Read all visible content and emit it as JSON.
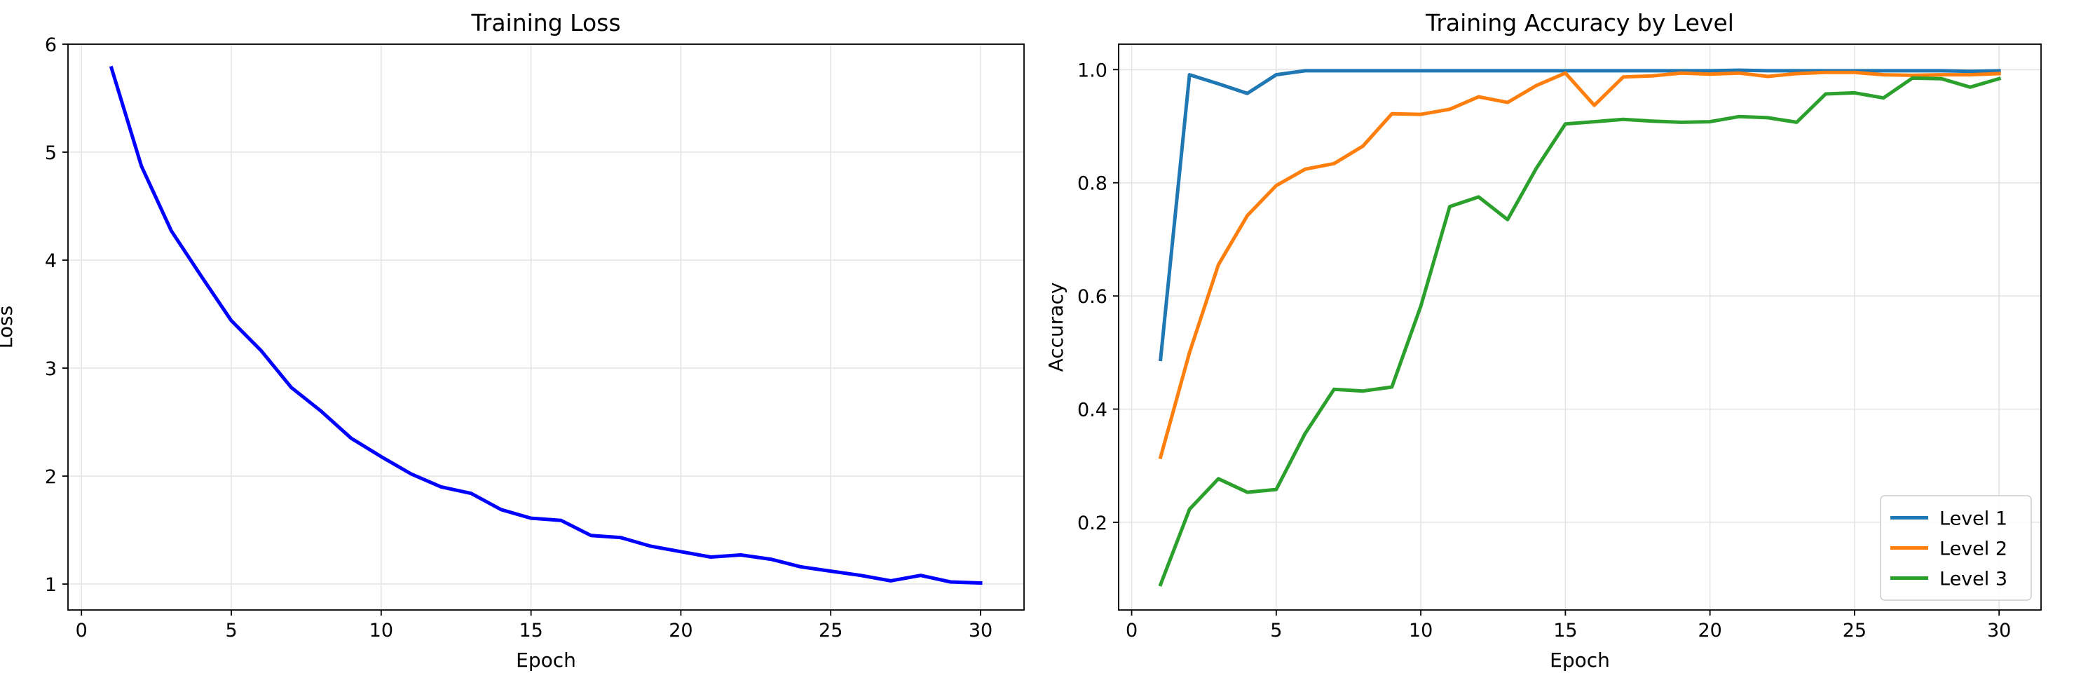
{
  "chart_data": [
    {
      "type": "line",
      "title": "Training Loss",
      "xlabel": "Epoch",
      "ylabel": "Loss",
      "xlim": [
        -0.45,
        31.45
      ],
      "ylim": [
        0.76,
        6.0
      ],
      "xticks": [
        0,
        5,
        10,
        15,
        20,
        25,
        30
      ],
      "yticks": [
        1,
        2,
        3,
        4,
        5,
        6
      ],
      "grid": true,
      "legend": null,
      "x": [
        1,
        2,
        3,
        4,
        5,
        6,
        7,
        8,
        9,
        10,
        11,
        12,
        13,
        14,
        15,
        16,
        17,
        18,
        19,
        20,
        21,
        22,
        23,
        24,
        25,
        26,
        27,
        28,
        29,
        30
      ],
      "series": [
        {
          "color": "#0000ff",
          "values": [
            5.78,
            4.87,
            4.27,
            3.85,
            3.44,
            3.16,
            2.82,
            2.6,
            2.35,
            2.18,
            2.02,
            1.9,
            1.84,
            1.69,
            1.61,
            1.59,
            1.45,
            1.43,
            1.35,
            1.3,
            1.25,
            1.27,
            1.23,
            1.16,
            1.12,
            1.08,
            1.03,
            1.08,
            1.02,
            1.01
          ]
        }
      ]
    },
    {
      "type": "line",
      "title": "Training Accuracy by Level",
      "xlabel": "Epoch",
      "ylabel": "Accuracy",
      "xlim": [
        -0.45,
        31.45
      ],
      "ylim": [
        0.045,
        1.045
      ],
      "xticks": [
        0,
        5,
        10,
        15,
        20,
        25,
        30
      ],
      "yticks": [
        0.2,
        0.4,
        0.6,
        0.8,
        1.0
      ],
      "ytick_labels": [
        "0.2",
        "0.4",
        "0.6",
        "0.8",
        "1.0"
      ],
      "grid": true,
      "legend": "lower-right",
      "x": [
        1,
        2,
        3,
        4,
        5,
        6,
        7,
        8,
        9,
        10,
        11,
        12,
        13,
        14,
        15,
        16,
        17,
        18,
        19,
        20,
        21,
        22,
        23,
        24,
        25,
        26,
        27,
        28,
        29,
        30
      ],
      "series": [
        {
          "name": "Level 1",
          "color": "#1f77b4",
          "values": [
            0.488,
            0.991,
            0.975,
            0.958,
            0.991,
            0.998,
            0.998,
            0.998,
            0.998,
            0.998,
            0.998,
            0.998,
            0.998,
            0.998,
            0.998,
            0.998,
            0.998,
            0.998,
            0.998,
            0.998,
            0.999,
            0.998,
            0.998,
            0.998,
            0.998,
            0.998,
            0.998,
            0.998,
            0.997,
            0.998
          ]
        },
        {
          "name": "Level 2",
          "color": "#ff7f0e",
          "values": [
            0.315,
            0.5,
            0.655,
            0.742,
            0.795,
            0.824,
            0.834,
            0.865,
            0.922,
            0.921,
            0.93,
            0.952,
            0.942,
            0.972,
            0.994,
            0.937,
            0.987,
            0.989,
            0.994,
            0.992,
            0.994,
            0.988,
            0.993,
            0.995,
            0.995,
            0.991,
            0.99,
            0.991,
            0.991,
            0.993
          ]
        },
        {
          "name": "Level 3",
          "color": "#2ca02c",
          "values": [
            0.09,
            0.223,
            0.277,
            0.253,
            0.258,
            0.357,
            0.435,
            0.432,
            0.439,
            0.582,
            0.758,
            0.775,
            0.735,
            0.826,
            0.904,
            0.908,
            0.912,
            0.909,
            0.907,
            0.908,
            0.917,
            0.915,
            0.907,
            0.957,
            0.959,
            0.95,
            0.985,
            0.984,
            0.969,
            0.984
          ]
        }
      ]
    }
  ]
}
